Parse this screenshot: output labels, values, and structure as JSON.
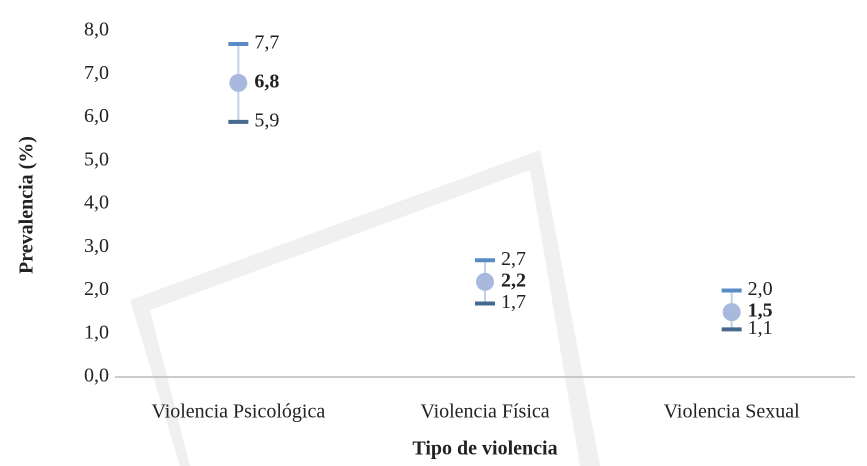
{
  "chart_data": {
    "type": "errorbar",
    "x_label": "Tipo de violencia",
    "y_label": "Prevalencia (%)",
    "categories": [
      "Violencia Psicológica",
      "Violencia Física",
      "Violencia Sexual"
    ],
    "values": [
      6.8,
      2.2,
      1.5
    ],
    "value_labels": [
      "6,8",
      "2,2",
      "1,5"
    ],
    "upper": [
      7.7,
      2.7,
      2.0
    ],
    "upper_labels": [
      "7,7",
      "2,7",
      "2,0"
    ],
    "lower": [
      5.9,
      1.7,
      1.1
    ],
    "lower_labels": [
      "5,9",
      "1,7",
      "1,1"
    ],
    "color": "#a9b9dd",
    "upper_color": "#5b8bc5",
    "lower_color": "#46698f",
    "bar_color": "#c3cfe6",
    "ylim": [
      0,
      8
    ],
    "yticks": [
      {
        "value": 0,
        "label": "0,0"
      },
      {
        "value": 1,
        "label": "1,0"
      },
      {
        "value": 2,
        "label": "2,0"
      },
      {
        "value": 3,
        "label": "3,0"
      },
      {
        "value": 4,
        "label": "4,0"
      },
      {
        "value": 5,
        "label": "5,0"
      },
      {
        "value": 6,
        "label": "6,0"
      },
      {
        "value": 7,
        "label": "7,0"
      },
      {
        "value": 8,
        "label": "8,0"
      }
    ],
    "grid": false
  }
}
